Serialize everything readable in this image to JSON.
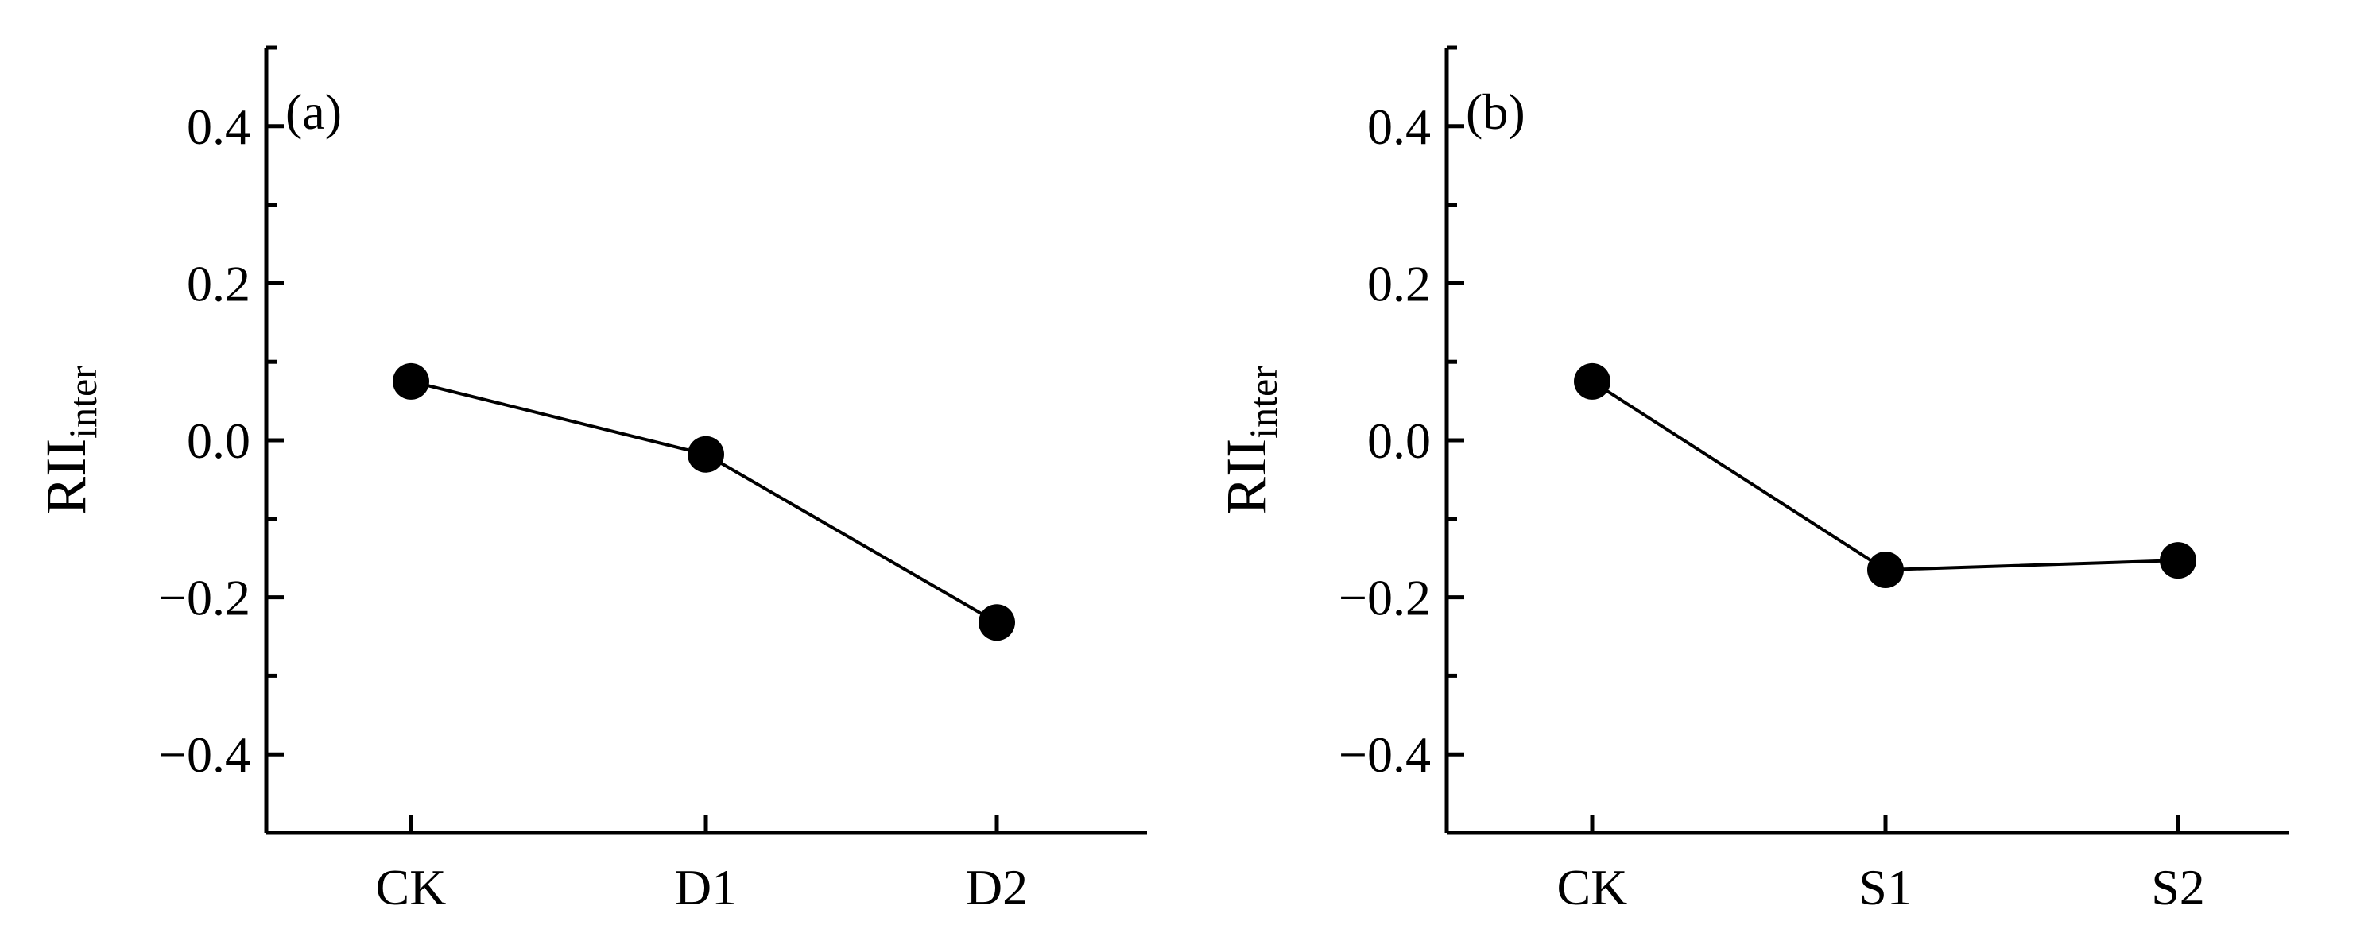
{
  "chart_data": [
    {
      "type": "line",
      "panel_label": "(a)",
      "categories": [
        "CK",
        "D1",
        "D2"
      ],
      "values": [
        0.075,
        -0.018,
        -0.232
      ],
      "ylabel": {
        "main": "RII",
        "sub": "inter"
      },
      "ylim": [
        -0.5,
        0.5
      ],
      "yticks": [
        "0.4",
        "0.2",
        "0.0",
        "−0.2",
        "−0.4"
      ],
      "grid": false,
      "legend": "none",
      "colors": {
        "line": "#000000",
        "marker": "#000000"
      }
    },
    {
      "type": "line",
      "panel_label": "(b)",
      "categories": [
        "CK",
        "S1",
        "S2"
      ],
      "values": [
        0.075,
        -0.165,
        -0.153
      ],
      "ylabel": {
        "main": "RII",
        "sub": "inter"
      },
      "ylim": [
        -0.5,
        0.5
      ],
      "yticks": [
        "0.4",
        "0.2",
        "0.0",
        "−0.2",
        "−0.4"
      ],
      "grid": false,
      "legend": "none",
      "colors": {
        "line": "#000000",
        "marker": "#000000"
      }
    }
  ]
}
